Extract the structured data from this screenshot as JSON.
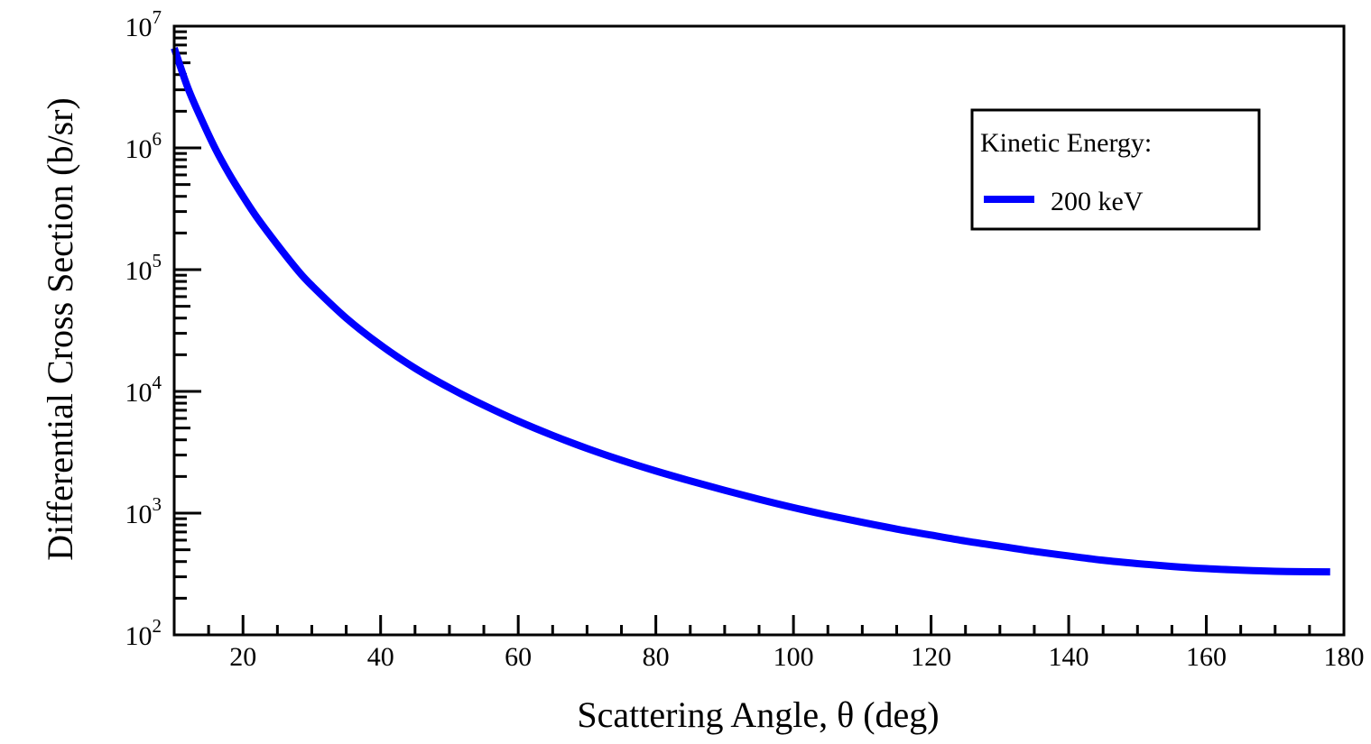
{
  "chart_data": {
    "type": "line",
    "xlabel": "Scattering Angle, θ (deg)",
    "ylabel": "Differential Cross Section (b/sr)",
    "xlim": [
      10,
      180
    ],
    "ylim": [
      100,
      10000000
    ],
    "yscale": "log",
    "x_ticks": [
      20,
      40,
      60,
      80,
      100,
      120,
      140,
      160,
      180
    ],
    "x_tick_labels": [
      "20",
      "40",
      "60",
      "80",
      "100",
      "120",
      "140",
      "160",
      "180"
    ],
    "y_ticks": [
      {
        "base": "10",
        "exp": "2",
        "value": 100
      },
      {
        "base": "10",
        "exp": "3",
        "value": 1000
      },
      {
        "base": "10",
        "exp": "4",
        "value": 10000
      },
      {
        "base": "10",
        "exp": "5",
        "value": 100000
      },
      {
        "base": "10",
        "exp": "6",
        "value": 1000000
      },
      {
        "base": "10",
        "exp": "7",
        "value": 10000000
      }
    ],
    "grid": false,
    "legend": {
      "title": "Kinetic Energy:",
      "placement": "top-right"
    },
    "series": [
      {
        "name": "200 keV",
        "color": "#0000ff",
        "x": [
          10,
          12,
          14,
          16,
          18,
          20,
          22,
          25,
          28,
          30,
          35,
          40,
          45,
          50,
          55,
          60,
          65,
          70,
          75,
          80,
          85,
          90,
          95,
          100,
          105,
          110,
          115,
          120,
          125,
          130,
          135,
          140,
          145,
          150,
          155,
          160,
          165,
          170,
          175,
          178
        ],
        "y": [
          6600000,
          3100000,
          1700000,
          980000,
          610000,
          400000,
          270000,
          160000,
          98000,
          74000,
          40000,
          24000,
          15500,
          10700,
          7700,
          5700,
          4350,
          3400,
          2720,
          2220,
          1840,
          1540,
          1300,
          1110,
          960,
          840,
          740,
          660,
          590,
          535,
          485,
          445,
          410,
          385,
          365,
          350,
          340,
          333,
          330,
          329
        ]
      }
    ]
  }
}
